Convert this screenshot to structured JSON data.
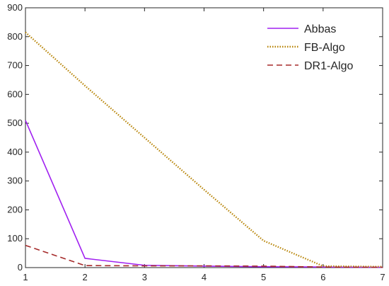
{
  "chart_data": {
    "type": "line",
    "title": "",
    "xlabel": "",
    "ylabel": "",
    "x": [
      1,
      2,
      3,
      4,
      5,
      6,
      7
    ],
    "xlim": [
      1,
      7
    ],
    "ylim": [
      0,
      900
    ],
    "xticks": [
      "1",
      "2",
      "3",
      "4",
      "5",
      "6",
      "7"
    ],
    "yticks": [
      "0",
      "100",
      "200",
      "300",
      "400",
      "500",
      "600",
      "700",
      "800",
      "900"
    ],
    "grid": false,
    "legend_position": "top-right",
    "series": [
      {
        "name": "Abbas",
        "color": "#a020f0",
        "style": "solid",
        "values": [
          510,
          32,
          8,
          5,
          3,
          2,
          1
        ]
      },
      {
        "name": "FB-Algo",
        "color": "#b8860b",
        "style": "dotted",
        "values": [
          815,
          630,
          450,
          270,
          93,
          5,
          3
        ]
      },
      {
        "name": "DR1-Algo",
        "color": "#a52a2a",
        "style": "dashed",
        "values": [
          77,
          7,
          6,
          6,
          5,
          2,
          1
        ]
      }
    ]
  }
}
